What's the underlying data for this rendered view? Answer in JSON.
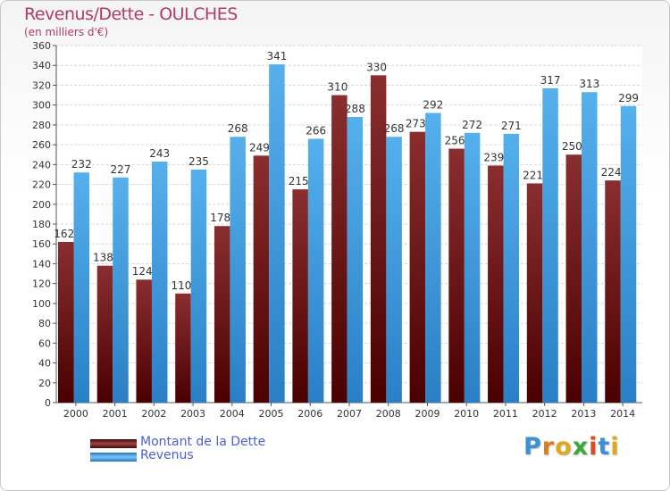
{
  "header": {
    "title": "Revenus/Dette - OULCHES",
    "subtitle": "(en milliers d'€)"
  },
  "chart_data": {
    "type": "bar",
    "title": "Revenus/Dette - OULCHES",
    "ylabel": "(en milliers d'€)",
    "xlabel": "",
    "categories": [
      "2000",
      "2001",
      "2002",
      "2003",
      "2004",
      "2005",
      "2006",
      "2007",
      "2008",
      "2009",
      "2010",
      "2011",
      "2012",
      "2013",
      "2014"
    ],
    "series": [
      {
        "name": "Montant de la Dette",
        "color": "#7a1a1a",
        "values": [
          162,
          138,
          124,
          110,
          178,
          249,
          215,
          310,
          330,
          273,
          256,
          239,
          221,
          250,
          224
        ]
      },
      {
        "name": "Revenus",
        "color": "#3d9ee4",
        "values": [
          232,
          227,
          243,
          235,
          268,
          341,
          266,
          288,
          268,
          292,
          272,
          271,
          317,
          313,
          299
        ]
      }
    ],
    "ylim": [
      0,
      360
    ],
    "yticks": [
      0,
      20,
      40,
      60,
      80,
      100,
      120,
      140,
      160,
      180,
      200,
      220,
      240,
      260,
      280,
      300,
      320,
      340,
      360
    ],
    "grid": true,
    "legend_position": "bottom-left"
  },
  "legend": [
    {
      "label": "Montant de la Dette"
    },
    {
      "label": "Revenus"
    }
  ],
  "logo": {
    "letters": [
      "P",
      "r",
      "o",
      "x",
      "i",
      "t",
      "i"
    ]
  }
}
